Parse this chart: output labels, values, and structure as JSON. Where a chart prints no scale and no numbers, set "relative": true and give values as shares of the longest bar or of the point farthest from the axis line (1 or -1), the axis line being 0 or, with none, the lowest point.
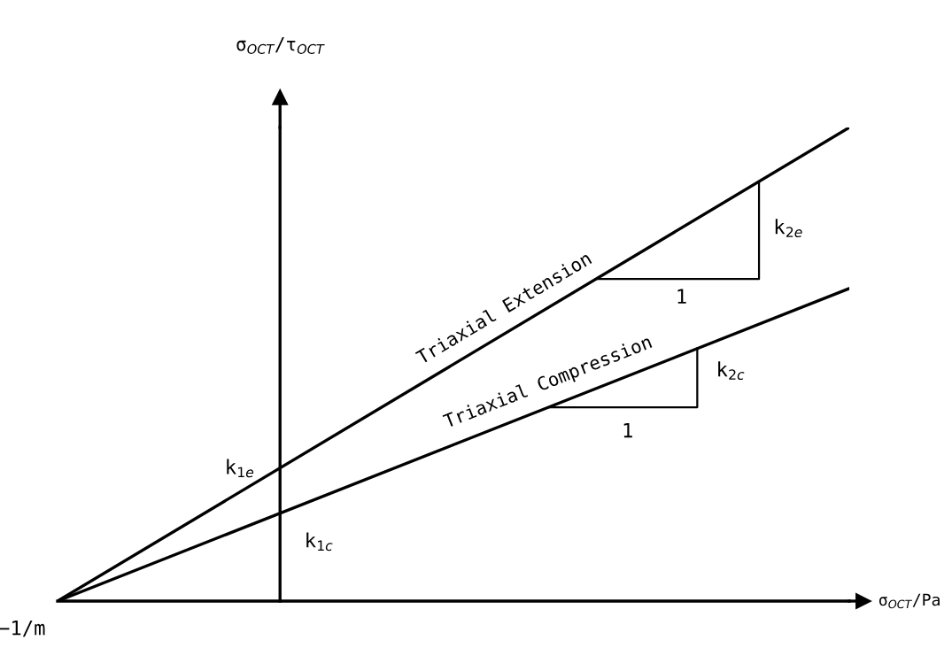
{
  "chart_data": {
    "type": "line",
    "relative": true,
    "tick_labels": false,
    "xlabel": "σ$_{OCT}$/Pa",
    "ylabel": "σ$_{OCT}$/τ$_{OCT}$",
    "categories": [
      null,
      null
    ],
    "series": [
      {
        "name": "Triaxial Extension",
        "color": "#000000",
        "values": [
          0,
          1
        ]
      },
      {
        "name": "Triaxial Compression",
        "color": "#000000",
        "values": [
          0,
          0.66
        ]
      }
    ],
    "annotations": [
      "−1/m",
      "k$_{1e}$",
      "k$_{1c}$",
      "k$_{2e}$",
      "1",
      "k$_{2c}$",
      "1"
    ]
  }
}
